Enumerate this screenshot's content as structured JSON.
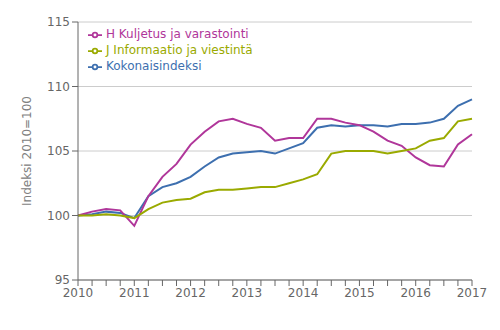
{
  "chart_data": {
    "type": "line",
    "ylabel": "Indeksi 2010=100",
    "categories": [
      "2010",
      null,
      null,
      null,
      "2011",
      null,
      null,
      null,
      "2012",
      null,
      null,
      null,
      "2013",
      null,
      null,
      null,
      "2014",
      null,
      null,
      null,
      "2015",
      null,
      null,
      null,
      "2016",
      null,
      null,
      null,
      "2017"
    ],
    "series": [
      {
        "name": "Kokonaisindeksi",
        "color": "#3d6faf",
        "values": [
          100.0,
          100.1,
          100.3,
          100.2,
          99.8,
          101.5,
          102.2,
          102.5,
          103.0,
          103.8,
          104.5,
          104.8,
          104.9,
          105.0,
          104.8,
          105.2,
          105.6,
          106.8,
          107.0,
          106.9,
          107.0,
          107.0,
          106.9,
          107.1,
          107.1,
          107.2,
          107.5,
          108.5,
          109.0
        ]
      },
      {
        "name": "H Kuljetus ja varastointi",
        "color": "#b0369a",
        "values": [
          100.0,
          100.3,
          100.5,
          100.4,
          99.2,
          101.5,
          103.0,
          104.0,
          105.5,
          106.5,
          107.3,
          107.5,
          107.1,
          106.8,
          105.8,
          106.0,
          106.0,
          107.5,
          107.5,
          107.2,
          107.0,
          106.5,
          105.8,
          105.4,
          104.5,
          103.9,
          103.8,
          105.5,
          106.3
        ]
      },
      {
        "name": "J Informaatio ja viestintä",
        "color": "#9aaa00",
        "values": [
          100.0,
          100.0,
          100.1,
          100.0,
          99.8,
          100.5,
          101.0,
          101.2,
          101.3,
          101.8,
          102.0,
          102.0,
          102.1,
          102.2,
          102.2,
          102.5,
          102.8,
          103.2,
          104.8,
          105.0,
          105.0,
          105.0,
          104.8,
          105.0,
          105.2,
          105.8,
          106.0,
          107.3,
          107.5
        ]
      }
    ],
    "ylim": [
      95,
      115
    ],
    "yticks": [
      95,
      100,
      105,
      110,
      115
    ],
    "grid": true,
    "legend": "upper left"
  }
}
